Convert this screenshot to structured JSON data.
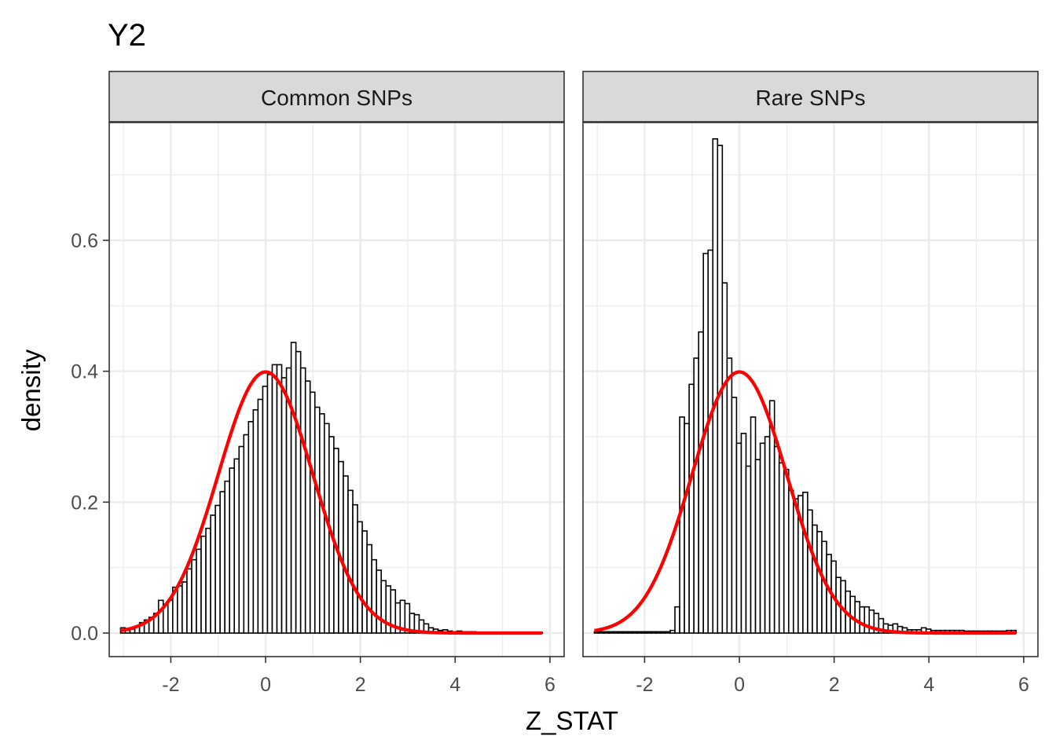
{
  "title": "Y2",
  "chart_data": {
    "type": "histogram",
    "xlabel": "Z_STAT",
    "ylabel": "density",
    "xlim": [
      -3.3,
      6.3
    ],
    "ylim": [
      -0.036,
      0.78
    ],
    "xticks": [
      -2,
      0,
      2,
      4,
      6
    ],
    "yticks": [
      0.0,
      0.2,
      0.4,
      0.6
    ],
    "grid": true,
    "overlay": {
      "name": "standard normal density",
      "color": "#ff0000"
    },
    "bins": {
      "start": -3.06,
      "width": 0.1
    },
    "panels": [
      {
        "strip": "Common SNPs",
        "density": [
          0.008,
          0.004,
          0.006,
          0.01,
          0.016,
          0.02,
          0.024,
          0.03,
          0.05,
          0.044,
          0.05,
          0.07,
          0.072,
          0.078,
          0.098,
          0.112,
          0.128,
          0.148,
          0.16,
          0.18,
          0.195,
          0.216,
          0.232,
          0.252,
          0.266,
          0.285,
          0.303,
          0.323,
          0.341,
          0.357,
          0.377,
          0.395,
          0.41,
          0.41,
          0.39,
          0.405,
          0.444,
          0.43,
          0.405,
          0.385,
          0.368,
          0.345,
          0.335,
          0.32,
          0.3,
          0.282,
          0.262,
          0.24,
          0.218,
          0.196,
          0.17,
          0.156,
          0.135,
          0.112,
          0.096,
          0.08,
          0.072,
          0.066,
          0.046,
          0.05,
          0.045,
          0.03,
          0.028,
          0.02,
          0.014,
          0.008,
          0.006,
          0.004,
          0.005,
          0.003,
          0.002,
          0.003,
          0.002,
          0.002,
          0.002,
          0.001,
          0.001,
          0.001,
          0.001,
          0.001,
          0.001,
          0.001,
          0.001,
          0.001,
          0.001,
          0.001,
          0.001,
          0.001,
          0.001
        ]
      },
      {
        "strip": "Rare SNPs",
        "density": [
          0.002,
          0.002,
          0.002,
          0.002,
          0.002,
          0.002,
          0.002,
          0.002,
          0.002,
          0.002,
          0.002,
          0.002,
          0.002,
          0.002,
          0.002,
          0.002,
          0.004,
          0.04,
          0.33,
          0.32,
          0.38,
          0.42,
          0.46,
          0.58,
          0.585,
          0.755,
          0.745,
          0.535,
          0.42,
          0.36,
          0.29,
          0.305,
          0.255,
          0.33,
          0.265,
          0.29,
          0.3,
          0.355,
          0.285,
          0.26,
          0.25,
          0.218,
          0.205,
          0.21,
          0.215,
          0.188,
          0.165,
          0.155,
          0.14,
          0.12,
          0.11,
          0.085,
          0.08,
          0.064,
          0.056,
          0.048,
          0.04,
          0.04,
          0.035,
          0.03,
          0.022,
          0.014,
          0.012,
          0.014,
          0.01,
          0.008,
          0.005,
          0.005,
          0.005,
          0.008,
          0.006,
          0.004,
          0.004,
          0.004,
          0.004,
          0.004,
          0.004,
          0.004,
          0.003,
          0.003,
          0.003,
          0.003,
          0.003,
          0.003,
          0.003,
          0.003,
          0.003,
          0.004,
          0.004
        ]
      }
    ]
  }
}
